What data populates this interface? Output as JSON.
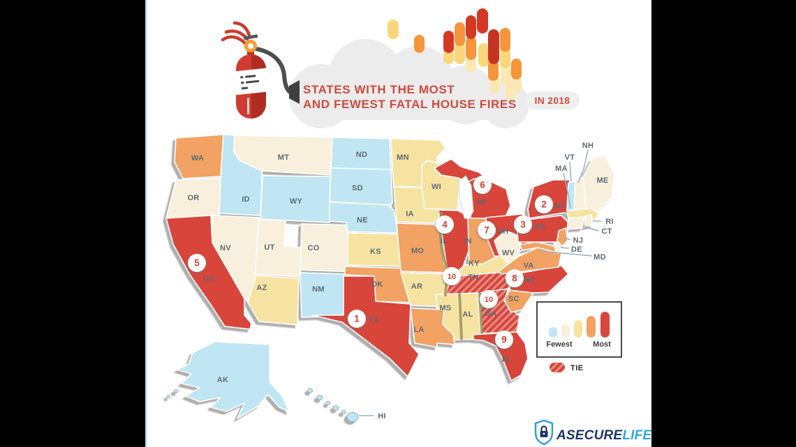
{
  "frame": {
    "letterbox_color": "#000000",
    "edge_line_color": "#9adcf3",
    "background": "#ffffff"
  },
  "header": {
    "title_line1": "STATES WITH THE MOST",
    "title_line2": "AND FEWEST FATAL HOUSE FIRES",
    "year_badge": "IN 2018"
  },
  "legend": {
    "fewest_label": "Fewest",
    "most_label": "Most",
    "tie_label": "TIE"
  },
  "logo": {
    "part1": "ASECURE",
    "part2": "LIFE"
  },
  "icons": [
    "fire-extinguisher-icon",
    "flame-icon",
    "cloud-shape",
    "shield-lock-icon",
    "tie-hatch-swatch"
  ],
  "scale_colors": {
    "fewest": "#bfe6f2",
    "low": "#f8f0dc",
    "mid": "#f7e3a1",
    "high": "#f2a263",
    "most": "#d8453a"
  },
  "chart_data": {
    "type": "heatmap",
    "title": "STATES WITH THE MOST AND FEWEST FATAL HOUSE FIRES IN 2018",
    "legend": {
      "scale": [
        "Fewest",
        "Most"
      ],
      "tie": "TIE"
    },
    "levels": [
      "fewest",
      "low",
      "mid",
      "high",
      "most"
    ],
    "most_fatal_rankings": [
      {
        "rank": 1,
        "state": "TX"
      },
      {
        "rank": 2,
        "state": "NY"
      },
      {
        "rank": 3,
        "state": "PA"
      },
      {
        "rank": 4,
        "state": "IL"
      },
      {
        "rank": 5,
        "state": "CA"
      },
      {
        "rank": 6,
        "state": "MI"
      },
      {
        "rank": 7,
        "state": "OH"
      },
      {
        "rank": 8,
        "state": "NC"
      },
      {
        "rank": 9,
        "state": "FL"
      },
      {
        "rank": 10,
        "state": "TN",
        "tie": true
      },
      {
        "rank": 10,
        "state": "GA",
        "tie": true
      }
    ],
    "states": [
      {
        "code": "WA",
        "level": "high"
      },
      {
        "code": "OR",
        "level": "low"
      },
      {
        "code": "CA",
        "level": "most",
        "rank": 5
      },
      {
        "code": "ID",
        "level": "fewest"
      },
      {
        "code": "MT",
        "level": "low"
      },
      {
        "code": "WY",
        "level": "fewest"
      },
      {
        "code": "NV",
        "level": "low"
      },
      {
        "code": "UT",
        "level": "low"
      },
      {
        "code": "CO",
        "level": "low"
      },
      {
        "code": "AZ",
        "level": "mid"
      },
      {
        "code": "NM",
        "level": "fewest"
      },
      {
        "code": "ND",
        "level": "fewest"
      },
      {
        "code": "SD",
        "level": "fewest"
      },
      {
        "code": "NE",
        "level": "fewest"
      },
      {
        "code": "KS",
        "level": "mid"
      },
      {
        "code": "OK",
        "level": "high"
      },
      {
        "code": "TX",
        "level": "most",
        "rank": 1
      },
      {
        "code": "MN",
        "level": "mid"
      },
      {
        "code": "IA",
        "level": "mid"
      },
      {
        "code": "MO",
        "level": "high"
      },
      {
        "code": "AR",
        "level": "mid"
      },
      {
        "code": "WI",
        "level": "mid"
      },
      {
        "code": "IL",
        "level": "most",
        "rank": 4
      },
      {
        "code": "IN",
        "level": "high"
      },
      {
        "code": "MI",
        "level": "most",
        "rank": 6
      },
      {
        "code": "OH",
        "level": "most",
        "rank": 7
      },
      {
        "code": "KY",
        "level": "mid"
      },
      {
        "code": "TN",
        "level": "most",
        "rank": 10,
        "tie": true
      },
      {
        "code": "MS",
        "level": "mid"
      },
      {
        "code": "AL",
        "level": "mid"
      },
      {
        "code": "LA",
        "level": "high"
      },
      {
        "code": "GA",
        "level": "most",
        "rank": 10,
        "tie": true
      },
      {
        "code": "FL",
        "level": "most",
        "rank": 9
      },
      {
        "code": "SC",
        "level": "high"
      },
      {
        "code": "NC",
        "level": "most",
        "rank": 8
      },
      {
        "code": "VA",
        "level": "high"
      },
      {
        "code": "WV",
        "level": "low"
      },
      {
        "code": "PA",
        "level": "most",
        "rank": 3
      },
      {
        "code": "NY",
        "level": "most",
        "rank": 2
      },
      {
        "code": "MD",
        "level": "high"
      },
      {
        "code": "DE",
        "level": "low"
      },
      {
        "code": "NJ",
        "level": "high"
      },
      {
        "code": "VT",
        "level": "fewest"
      },
      {
        "code": "NH",
        "level": "low"
      },
      {
        "code": "ME",
        "level": "low"
      },
      {
        "code": "MA",
        "level": "mid"
      },
      {
        "code": "CT",
        "level": "low"
      },
      {
        "code": "RI",
        "level": "low"
      },
      {
        "code": "AK",
        "level": "fewest"
      },
      {
        "code": "HI",
        "level": "fewest"
      }
    ]
  }
}
